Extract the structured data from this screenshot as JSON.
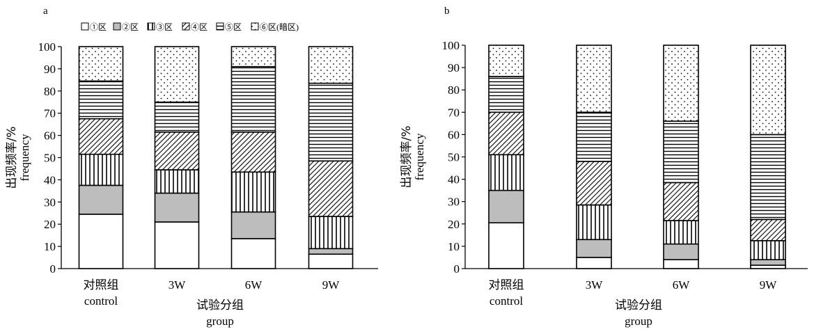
{
  "legend": [
    {
      "label": "①区",
      "pattern": "white"
    },
    {
      "label": "②区",
      "pattern": "gray"
    },
    {
      "label": "③区",
      "pattern": "vertical"
    },
    {
      "label": "④区",
      "pattern": "diagonal"
    },
    {
      "label": "⑤区",
      "pattern": "horizontal"
    },
    {
      "label": "⑥区(暗区)",
      "pattern": "dots"
    }
  ],
  "colors": {
    "gray_fill": "#bdbdbd",
    "stroke": "#000000",
    "dots": "#000000"
  },
  "chart_data": [
    {
      "panel": "a",
      "type": "bar",
      "stacked": true,
      "categories": [
        [
          "对照组",
          "control"
        ],
        [
          "3W",
          ""
        ],
        [
          "6W",
          ""
        ],
        [
          "9W",
          ""
        ]
      ],
      "ylabel": [
        "出现频率/%",
        "frequency"
      ],
      "xlabel": [
        "试验分组",
        "group"
      ],
      "ylim": [
        0,
        100
      ],
      "yticks": [
        0,
        10,
        20,
        30,
        40,
        50,
        60,
        70,
        80,
        90,
        100
      ],
      "series": [
        {
          "name": "①区",
          "values": [
            24.5,
            21,
            13.5,
            6.5
          ]
        },
        {
          "name": "②区",
          "values": [
            13,
            13,
            12,
            2.5
          ]
        },
        {
          "name": "③区",
          "values": [
            14,
            10.5,
            18,
            14.5
          ]
        },
        {
          "name": "④区",
          "values": [
            16,
            17,
            18,
            25
          ]
        },
        {
          "name": "⑤区",
          "values": [
            17,
            13.5,
            29.5,
            35
          ]
        },
        {
          "name": "⑥区(暗区)",
          "values": [
            15.5,
            25,
            9,
            16.5
          ]
        }
      ]
    },
    {
      "panel": "b",
      "type": "bar",
      "stacked": true,
      "categories": [
        [
          "对照组",
          "control"
        ],
        [
          "3W",
          ""
        ],
        [
          "6W",
          ""
        ],
        [
          "9W",
          ""
        ]
      ],
      "ylabel": [
        "出现频率/%",
        "frequency"
      ],
      "xlabel": [
        "试验分组",
        "group"
      ],
      "ylim": [
        0,
        100
      ],
      "yticks": [
        0,
        10,
        20,
        30,
        40,
        50,
        60,
        70,
        80,
        90,
        100
      ],
      "series": [
        {
          "name": "①区",
          "values": [
            20.5,
            5,
            4,
            1.5
          ]
        },
        {
          "name": "②区",
          "values": [
            14.5,
            8,
            7,
            2.5
          ]
        },
        {
          "name": "③区",
          "values": [
            16,
            15.5,
            10.5,
            8.5
          ]
        },
        {
          "name": "④区",
          "values": [
            19,
            19.5,
            17,
            9.5
          ]
        },
        {
          "name": "⑤区",
          "values": [
            16,
            22,
            27.5,
            38
          ]
        },
        {
          "name": "⑥区(暗区)",
          "values": [
            14,
            30,
            34,
            40
          ]
        }
      ]
    }
  ]
}
